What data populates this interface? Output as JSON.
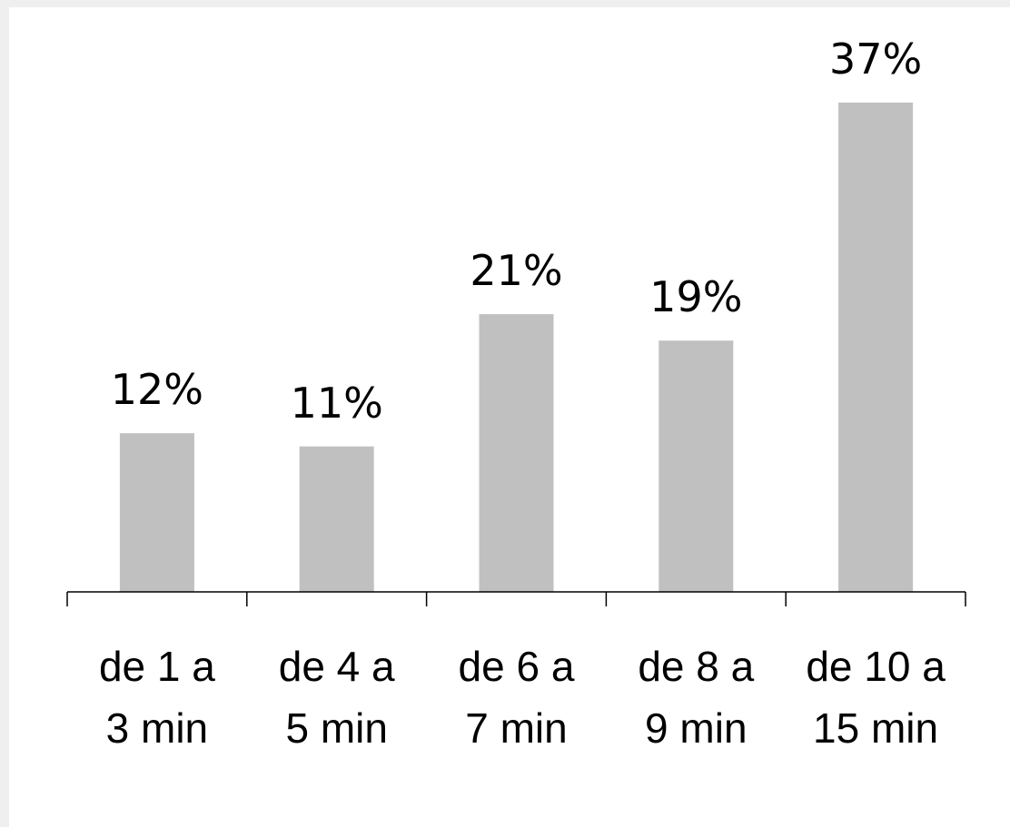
{
  "chart_data": {
    "type": "bar",
    "categories": [
      [
        "de 1 a",
        "3 min"
      ],
      [
        "de 4 a",
        "5 min"
      ],
      [
        "de 6 a",
        "7 min"
      ],
      [
        "de 8 a",
        "9 min"
      ],
      [
        "de 10 a",
        "15 min"
      ]
    ],
    "values": [
      12,
      11,
      21,
      19,
      37
    ],
    "data_labels": [
      "12%",
      "11%",
      "21%",
      "19%",
      "37%"
    ],
    "unit": "%",
    "title": "",
    "xlabel": "",
    "ylabel": "",
    "ylim": [
      0,
      37
    ],
    "grid": false,
    "legend": "none",
    "colors": {
      "bar": "#c0c0c0",
      "axis": "#000000",
      "background": "#ffffff",
      "page": "#efefef"
    }
  }
}
